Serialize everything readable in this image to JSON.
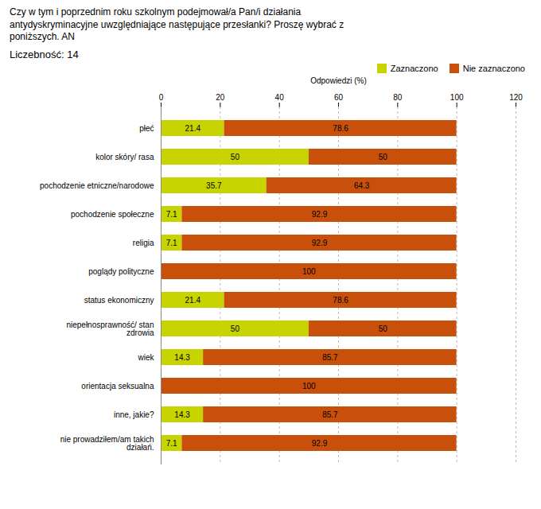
{
  "chart_data": {
    "type": "bar",
    "orientation": "horizontal",
    "stacked": true,
    "title": "Czy w tym i poprzednim roku szkolnym podejmował/a Pan/i działania\nantydyskryminacyjne uwzględniające następujące przesłanki? Proszę wybrać z\nponiższych. AN",
    "subtitle": "Liczebność: 14",
    "x_label": "Odpowiedzi (%)",
    "categories": [
      "płeć",
      "kolor skóry/ rasa",
      "pochodzenie etniczne/narodowe",
      "pochodzenie społeczne",
      "religia",
      "poglądy polityczne",
      "status ekonomiczny",
      "niepełnosprawność/ stan\nzdrowia",
      "wiek",
      "orientacja seksualna",
      "inne, jakie?",
      "nie prowadziłem/am takich\ndziałań."
    ],
    "series": [
      {
        "name": "Zaznaczono",
        "color": "#c8d400",
        "values": [
          21.4,
          50.0,
          35.7,
          7.1,
          7.1,
          0.0,
          21.4,
          50.0,
          14.3,
          0.0,
          14.3,
          7.1
        ]
      },
      {
        "name": "Nie zaznaczono",
        "color": "#c8500a",
        "values": [
          78.6,
          50.0,
          64.3,
          92.9,
          92.9,
          100.0,
          78.6,
          50.0,
          85.7,
          100.0,
          85.7,
          92.9
        ]
      }
    ],
    "xlim": [
      0,
      120
    ],
    "xticks": [
      0,
      20,
      40,
      60,
      80,
      100,
      120
    ],
    "grid": true,
    "legend": "upper right",
    "data_labels": true
  }
}
